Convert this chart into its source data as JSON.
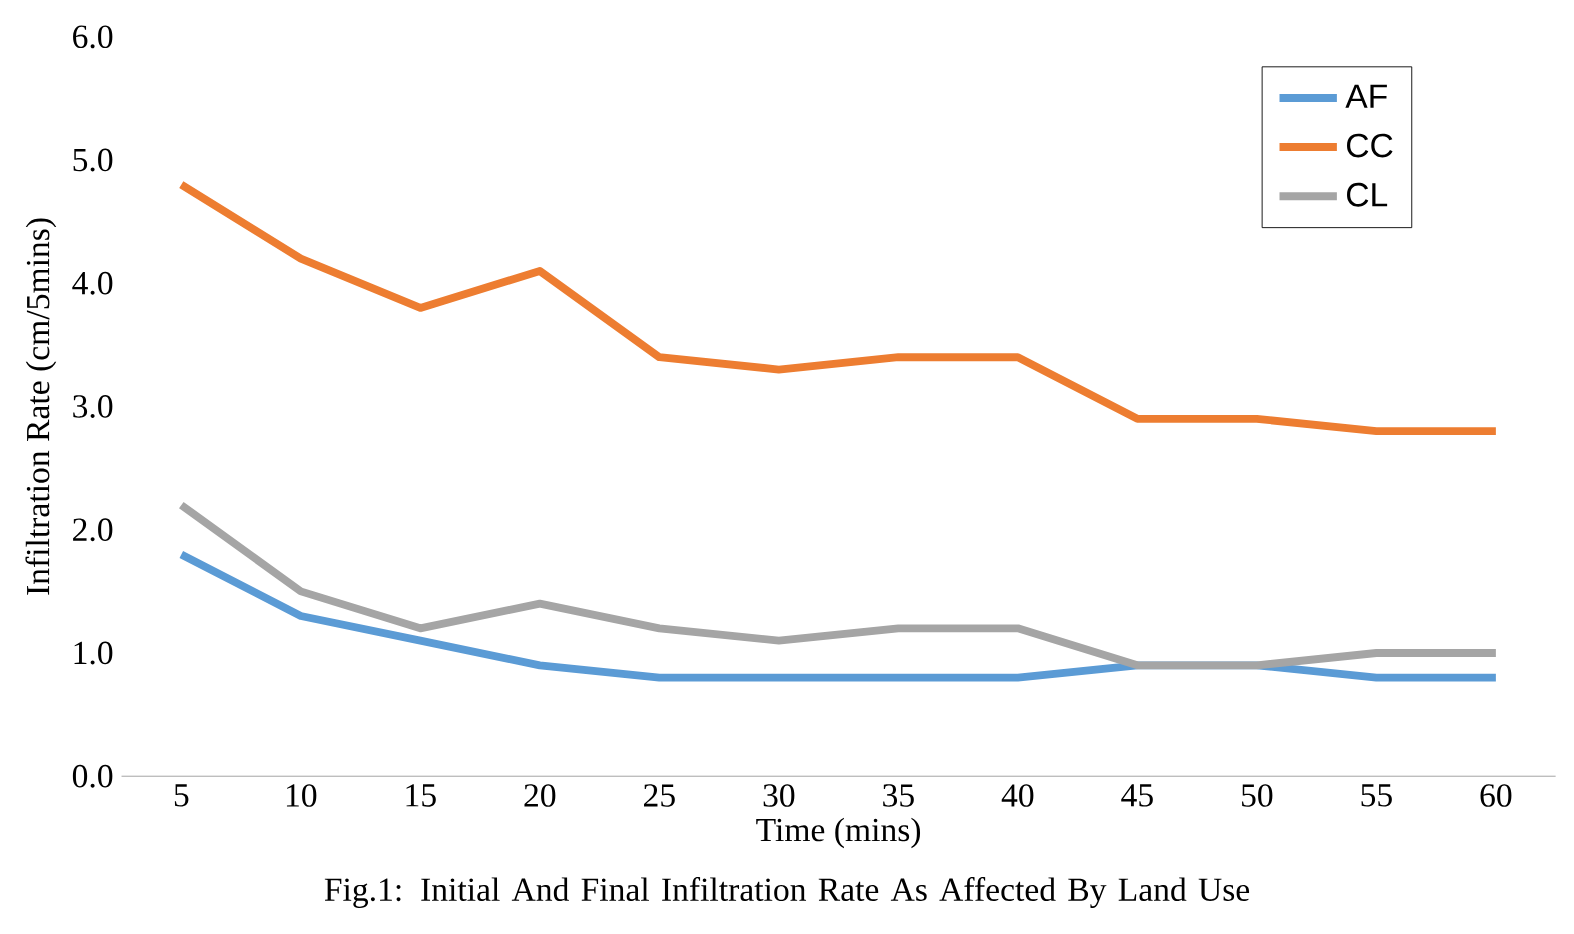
{
  "chart_data": {
    "type": "line",
    "xlabel": "Time (mins)",
    "ylabel": "Infiltration Rate (cm/5mins)",
    "categories": [
      "5",
      "10",
      "15",
      "20",
      "25",
      "30",
      "35",
      "40",
      "45",
      "50",
      "55",
      "60"
    ],
    "series": [
      {
        "name": "AF",
        "color": "#5b9bd5",
        "values": [
          1.8,
          1.3,
          1.1,
          0.9,
          0.8,
          0.8,
          0.8,
          0.8,
          0.9,
          0.9,
          0.8,
          0.8
        ]
      },
      {
        "name": "CC",
        "color": "#ed7d31",
        "values": [
          4.8,
          4.2,
          3.8,
          4.1,
          3.4,
          3.3,
          3.4,
          3.4,
          2.9,
          2.9,
          2.8,
          2.8
        ]
      },
      {
        "name": "CL",
        "color": "#a5a5a5",
        "values": [
          2.2,
          1.5,
          1.2,
          1.4,
          1.2,
          1.1,
          1.2,
          1.2,
          0.9,
          0.9,
          1.0,
          1.0
        ]
      }
    ],
    "ylim": [
      0,
      6
    ],
    "yticks": [
      {
        "value": 0,
        "label": "0.0"
      },
      {
        "value": 1,
        "label": "1.0"
      },
      {
        "value": 2,
        "label": "2.0"
      },
      {
        "value": 3,
        "label": "3.0"
      },
      {
        "value": 4,
        "label": "4.0"
      },
      {
        "value": 5,
        "label": "5.0"
      },
      {
        "value": 6,
        "label": "6.0"
      }
    ],
    "grid": false,
    "legend": "top right",
    "marker": "none",
    "line_style": "solid",
    "annotations": [
      "Fig.1: Initial And Final Infiltration Rate As Affected By Land Use"
    ]
  }
}
